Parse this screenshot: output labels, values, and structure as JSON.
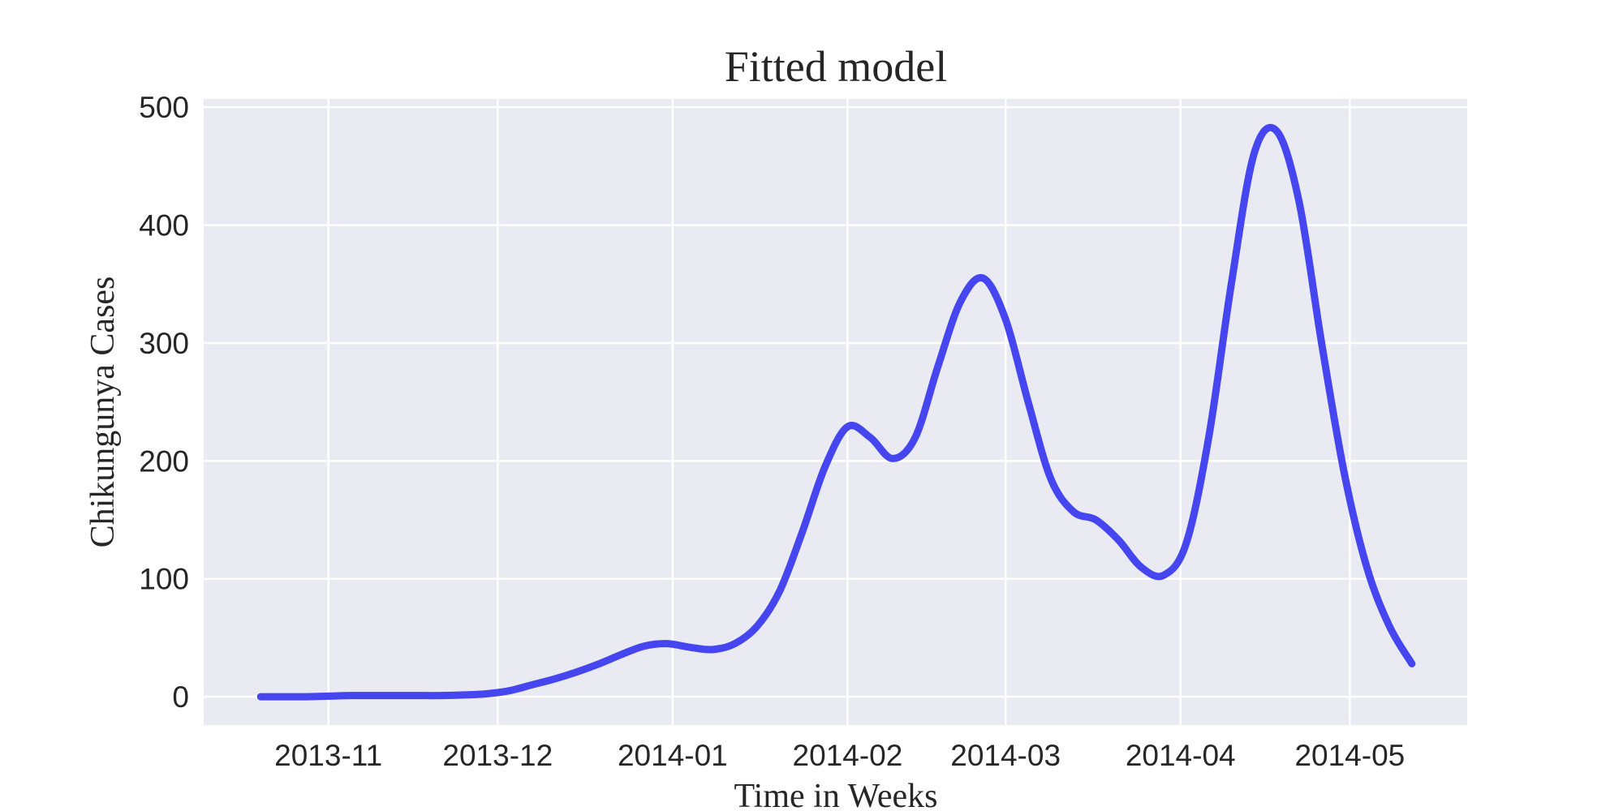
{
  "chart_data": {
    "type": "line",
    "title": "Fitted model",
    "x_label": "Time in Weeks",
    "y_label": "Chikungunya Cases",
    "x": [
      -12,
      -8,
      -4,
      0,
      4,
      8,
      12,
      16,
      20,
      24,
      28,
      32,
      36,
      40,
      44,
      48,
      52,
      56,
      60,
      64,
      68,
      72,
      76,
      80,
      84,
      88,
      92,
      96,
      100,
      104,
      108,
      112,
      116,
      120,
      124,
      128,
      132,
      136,
      140,
      144,
      148,
      152,
      156,
      160,
      164,
      168,
      172,
      176,
      180,
      184,
      188,
      192
    ],
    "series": [
      {
        "color": "#4646f0",
        "values": [
          0,
          0,
          0,
          0.5,
          1,
          1,
          1,
          1,
          1,
          1.5,
          2.5,
          5,
          10,
          15,
          21,
          28,
          36,
          43,
          45,
          42,
          40,
          45,
          60,
          90,
          140,
          195,
          229,
          220,
          202,
          220,
          280,
          335,
          355,
          320,
          250,
          185,
          157,
          150,
          133,
          110,
          103,
          130,
          220,
          350,
          460,
          480,
          420,
          300,
          190,
          110,
          60,
          28
        ]
      }
    ],
    "xlim": [
      -22.1,
      201.8
    ],
    "xticks": [
      {
        "value": 0,
        "label": "2013-11"
      },
      {
        "value": 30,
        "label": "2013-12"
      },
      {
        "value": 61,
        "label": "2014-01"
      },
      {
        "value": 92,
        "label": "2014-02"
      },
      {
        "value": 120,
        "label": "2014-03"
      },
      {
        "value": 151,
        "label": "2014-04"
      },
      {
        "value": 181,
        "label": "2014-05"
      }
    ],
    "ylim": [
      -24,
      507
    ],
    "yticks": [
      0,
      100,
      200,
      300,
      400,
      500
    ],
    "grid": true
  }
}
